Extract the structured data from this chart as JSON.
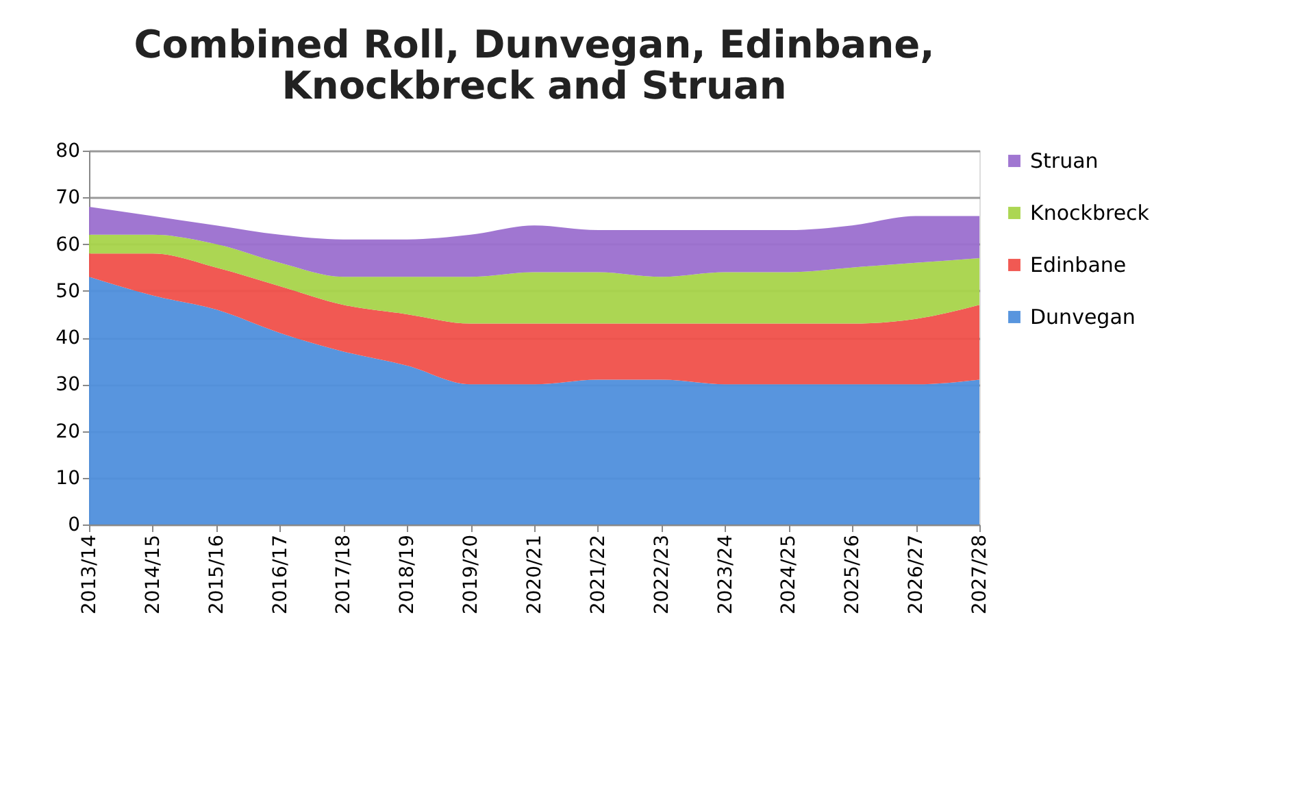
{
  "chart_data": {
    "type": "area",
    "title": "Combined Roll, Dunvegan, Edinbane, Knockbreck and Struan",
    "categories": [
      "2013/14",
      "2014/15",
      "2015/16",
      "2016/17",
      "2017/18",
      "2018/19",
      "2019/20",
      "2020/21",
      "2021/22",
      "2022/23",
      "2023/24",
      "2024/25",
      "2025/26",
      "2026/27",
      "2027/28"
    ],
    "stacked": true,
    "series": [
      {
        "name": "Dunvegan",
        "color": "#4f8fdc",
        "values": [
          53,
          49,
          46,
          41,
          37,
          34,
          30,
          30,
          31,
          31,
          30,
          30,
          30,
          30,
          31
        ]
      },
      {
        "name": "Edinbane",
        "color": "#f0504a",
        "values": [
          5,
          9,
          9,
          10,
          10,
          11,
          13,
          13,
          12,
          12,
          13,
          13,
          13,
          14,
          16
        ]
      },
      {
        "name": "Knockbreck",
        "color": "#a8d44a",
        "values": [
          4,
          4,
          5,
          5,
          6,
          8,
          10,
          11,
          11,
          10,
          11,
          11,
          12,
          12,
          10
        ]
      },
      {
        "name": "Struan",
        "color": "#9b6fcf",
        "values": [
          6,
          4,
          4,
          6,
          8,
          8,
          9,
          10,
          9,
          10,
          9,
          9,
          9,
          10,
          9
        ]
      }
    ],
    "ylim": [
      0,
      80
    ],
    "yticks": [
      0,
      10,
      20,
      30,
      40,
      50,
      60,
      70,
      80
    ],
    "grid": "y",
    "legend": "right"
  }
}
